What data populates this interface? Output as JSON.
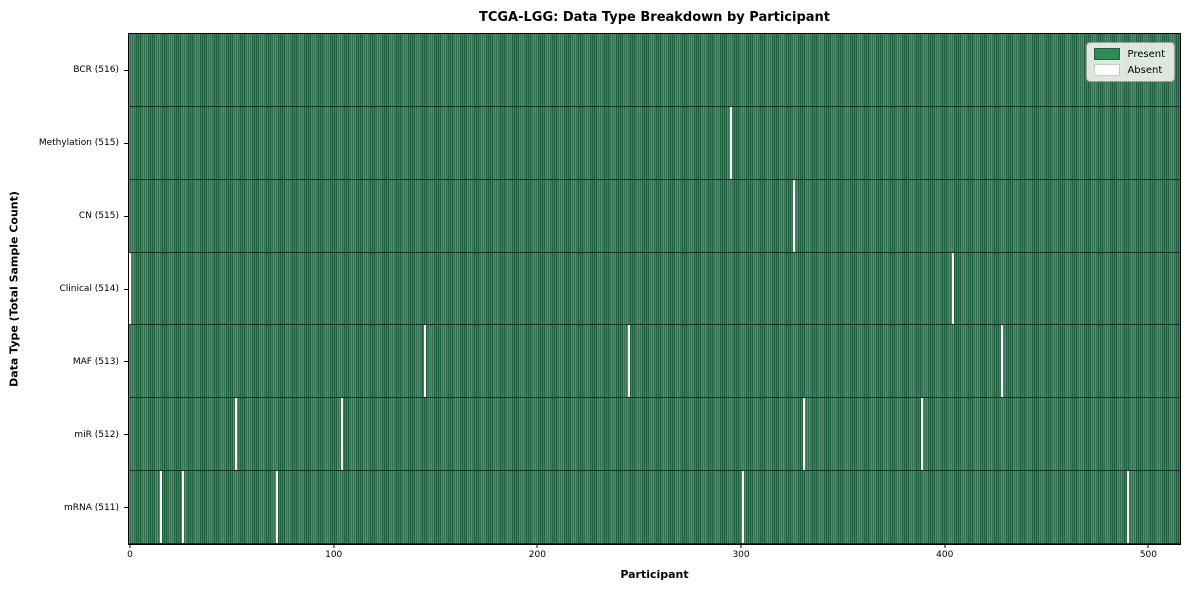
{
  "chart_data": {
    "type": "heatmap",
    "title": "TCGA-LGG: Data Type Breakdown by Participant",
    "xlabel": "Participant",
    "ylabel": "Data Type (Total Sample Count)",
    "n_participants": 516,
    "x_ticks": [
      0,
      100,
      200,
      300,
      400,
      500
    ],
    "colors": {
      "present": "#2e8b57",
      "present_edge": "#1e613e",
      "absent": "#ffffff"
    },
    "legend": [
      {
        "label": "Present",
        "color": "#2e8b57",
        "edge": "#1e613e"
      },
      {
        "label": "Absent",
        "color": "#ffffff",
        "edge": "#c8c8c8"
      }
    ],
    "legend_position": "upper right",
    "grid": false,
    "rows": [
      {
        "label": "BCR (516)",
        "data_type": "BCR",
        "present_count": 516,
        "absent_count": 0,
        "absent_participants": []
      },
      {
        "label": "Methylation (515)",
        "data_type": "Methylation",
        "present_count": 515,
        "absent_count": 1,
        "absent_participants": [
          295
        ]
      },
      {
        "label": "CN (515)",
        "data_type": "CN",
        "present_count": 515,
        "absent_count": 1,
        "absent_participants": [
          326
        ]
      },
      {
        "label": "Clinical (514)",
        "data_type": "Clinical",
        "present_count": 514,
        "absent_count": 2,
        "absent_participants": [
          0,
          404
        ]
      },
      {
        "label": "MAF (513)",
        "data_type": "MAF",
        "present_count": 513,
        "absent_count": 3,
        "absent_participants": [
          145,
          245,
          428
        ]
      },
      {
        "label": "miR (512)",
        "data_type": "miR",
        "present_count": 512,
        "absent_count": 4,
        "absent_participants": [
          52,
          104,
          331,
          389
        ]
      },
      {
        "label": "mRNA (511)",
        "data_type": "mRNA",
        "present_count": 511,
        "absent_count": 5,
        "absent_participants": [
          15,
          26,
          72,
          301,
          490
        ]
      }
    ]
  }
}
